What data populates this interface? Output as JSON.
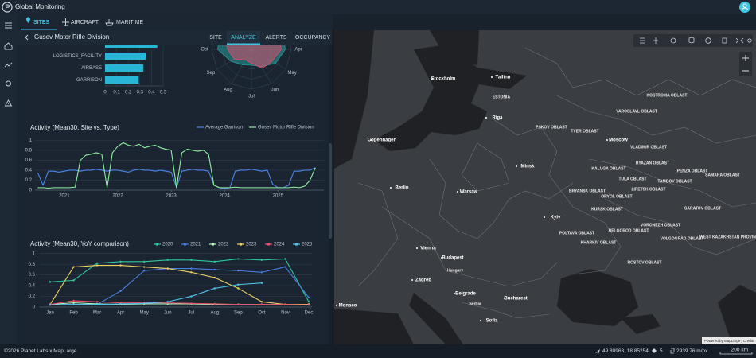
{
  "header": {
    "title": "Global Monitoring"
  },
  "tabs": [
    "SITES",
    "AIRCRAFT",
    "MARITIME"
  ],
  "panel": {
    "title": "Gusev Motor Rifle Division",
    "tabs": [
      "SITE",
      "ANALYZE",
      "ALERTS",
      "OCCUPANCY"
    ]
  },
  "chart_data": [
    {
      "type": "bar",
      "orientation": "horizontal",
      "categories": [
        null,
        "LOGISTICS_FACILITY",
        "AIRBASE",
        "GARRISON"
      ],
      "values": [
        0.45,
        0.35,
        0.33,
        0.29
      ],
      "color": "#29b6d6",
      "xlim": [
        0,
        0.5
      ],
      "xticks": [
        0,
        0.1,
        0.2,
        0.3,
        0.4,
        0.5
      ],
      "grid": true
    },
    {
      "type": "radar",
      "categories": [
        null,
        null,
        null,
        "Apr",
        "May",
        "Jun",
        "Jul",
        "Aug",
        "Sep",
        "Oct",
        null,
        null
      ],
      "rlim": [
        0,
        1
      ],
      "series": [
        {
          "color": "#2a9d9a",
          "values": [
            0.9,
            0.9,
            0.9,
            0.85,
            0.7,
            0.5,
            0.4,
            0.45,
            0.6,
            0.85,
            0.9,
            0.9
          ]
        },
        {
          "color": "#d9506e",
          "values": [
            0.8,
            0.8,
            0.8,
            0.75,
            0.6,
            0.55,
            0.35,
            0.3,
            0.5,
            0.6,
            0.8,
            0.8
          ]
        }
      ]
    },
    {
      "type": "line",
      "title": "Activity (Mean30, Site vs. Type)",
      "x": [
        2020.5,
        2020.6,
        2020.7,
        2020.8,
        2020.9,
        2021,
        2021.1,
        2021.2,
        2021.3,
        2021.4,
        2021.5,
        2021.6,
        2021.7,
        2021.8,
        2021.9,
        2022,
        2022.1,
        2022.2,
        2022.3,
        2022.4,
        2022.5,
        2022.6,
        2022.7,
        2022.8,
        2022.9,
        2023,
        2023.1,
        2023.2,
        2023.3,
        2023.4,
        2023.5,
        2023.6,
        2023.7,
        2023.8,
        2023.9,
        2024,
        2024.1,
        2024.2,
        2024.3,
        2024.4,
        2024.5,
        2024.6,
        2024.7,
        2024.8,
        2024.9,
        2025,
        2025.1,
        2025.2,
        2025.3,
        2025.4,
        2025.5,
        2025.6,
        2025.7
      ],
      "series": [
        {
          "name": "Average Garrison",
          "color": "#4a86e8",
          "values": [
            0.35,
            0.1,
            0.38,
            0.38,
            0.36,
            0.38,
            0.4,
            0.4,
            0.38,
            0.4,
            0.4,
            0.42,
            0.4,
            0.38,
            0.4,
            0.4,
            0.38,
            0.36,
            0.4,
            0.42,
            0.4,
            0.4,
            0.38,
            0.4,
            0.38,
            0.36,
            0.05,
            0.38,
            0.4,
            0.42,
            0.4,
            0.4,
            0.38,
            0.1,
            0.05,
            0.03,
            0.05,
            0.38,
            0.4,
            0.4,
            0.42,
            0.4,
            0.38,
            0.4,
            0.12,
            0.05,
            0.05,
            0.1,
            0.38,
            0.38,
            0.4,
            0.4,
            0.45
          ]
        },
        {
          "name": "Gusev Motor Rifle Division",
          "color": "#8ef0a0",
          "values": [
            0.05,
            0.05,
            0.04,
            0.05,
            0.05,
            0.05,
            0.05,
            0.06,
            0.6,
            0.7,
            0.72,
            0.75,
            0.72,
            0.05,
            0.75,
            0.88,
            0.95,
            0.9,
            0.88,
            0.92,
            0.85,
            0.88,
            0.9,
            0.85,
            0.82,
            0.8,
            0.05,
            0.75,
            0.82,
            0.8,
            0.78,
            0.8,
            0.72,
            0.1,
            0.05,
            0.05,
            0.05,
            0.06,
            0.05,
            0.05,
            0.05,
            0.05,
            0.05,
            0.05,
            0.05,
            0.05,
            0.05,
            0.05,
            0.06,
            0.05,
            0.08,
            0.2,
            0.45
          ]
        }
      ],
      "xlim": [
        2020.45,
        2025.8
      ],
      "xticks": [
        2021,
        2022,
        2023,
        2024,
        2025
      ],
      "ylim": [
        0,
        1.1
      ],
      "yticks": [
        0,
        0.2,
        0.4,
        0.6,
        0.8,
        1
      ],
      "grid": true
    },
    {
      "type": "line",
      "title": "Activity (Mean30, YoY comparison)",
      "markers": true,
      "categories": [
        "Jan",
        "Feb",
        "Mar",
        "Apr",
        "May",
        "Jun",
        "Jul",
        "Aug",
        "Sep",
        "Oct",
        "Nov",
        "Dec"
      ],
      "series": [
        {
          "name": "2020",
          "color": "#2fc79b",
          "values": [
            0.47,
            0.5,
            0.82,
            0.85,
            0.85,
            0.88,
            0.88,
            0.85,
            0.9,
            0.88,
            0.9,
            0.1
          ]
        },
        {
          "name": "2021",
          "color": "#4a7fe0",
          "values": [
            0.05,
            0.05,
            0.05,
            0.3,
            0.68,
            0.72,
            0.72,
            0.7,
            0.68,
            0.65,
            0.75,
            0.18
          ]
        },
        {
          "name": "2022",
          "color": "#b8f5c0",
          "values": [
            0.05,
            0.08,
            0.06,
            0.05,
            0.06,
            0.06,
            0.06,
            0.05,
            0.05,
            0.05,
            0.05,
            0.05
          ]
        },
        {
          "name": "2023",
          "color": "#f0d060",
          "values": [
            0.05,
            0.75,
            0.78,
            0.78,
            0.75,
            0.72,
            0.65,
            0.55,
            0.35,
            0.1,
            0.05,
            0.05
          ]
        },
        {
          "name": "2024",
          "color": "#e8506a",
          "values": [
            0.05,
            0.12,
            0.1,
            0.08,
            0.08,
            0.08,
            0.07,
            0.06,
            0.05,
            0.05,
            0.05,
            0.04
          ]
        },
        {
          "name": "2025",
          "color": "#4fc3e8",
          "values": [
            0.04,
            0.05,
            0.05,
            0.06,
            0.07,
            0.1,
            0.2,
            0.35,
            0.42,
            0.45,
            null,
            null
          ]
        }
      ],
      "ylim": [
        0,
        1.1
      ],
      "yticks": [
        0,
        0.2,
        0.4,
        0.6,
        0.8,
        1
      ],
      "grid": true
    }
  ],
  "map": {
    "labels": [
      "Stockholm",
      "Tallinn",
      "Riga",
      "ESTONIA",
      "Copenhagen",
      "Berlin",
      "Warsaw",
      "Minsk",
      "Moscow",
      "Kyiv",
      "Vienna",
      "Budapest",
      "Hungary",
      "Zagreb",
      "Belgrade",
      "Serbia",
      "Bucharest",
      "Sofia",
      "Monaco",
      "PSKOV OBLAST",
      "TVER OBLAST",
      "YAROSLAVL OBLAST",
      "KOSTROMA OBLAST",
      "VLADIMIR OBLAST",
      "KALUGA OBLAST",
      "TULA OBLAST",
      "RYAZAN OBLAST",
      "BRYANSK OBLAST",
      "ORYOL OBLAST",
      "LIPETSK OBLAST",
      "TAMBOV OBLAST",
      "PENZA OBLAST",
      "SAMARA OBLAST",
      "SARATOV OBLAST",
      "KURSK OBLAST",
      "BELGOROD OBLAST",
      "VORONEZH OBLAST",
      "VOLGOGRAD OBLAST",
      "WEST KAZAKHSTAN PROVINCE",
      "ROSTOV OBLAST",
      "KHARKIV OBLAST",
      "POLTAVA OBLAST"
    ],
    "attribution": "Powered by MapLarge | Credits"
  },
  "footer": {
    "copyright": "©2026 Planet Labs x MapLarge",
    "coordinates": "49.80963, 18.85254",
    "zoom": "5",
    "resolution": "2939.76 m/px",
    "scale": "200 km"
  }
}
